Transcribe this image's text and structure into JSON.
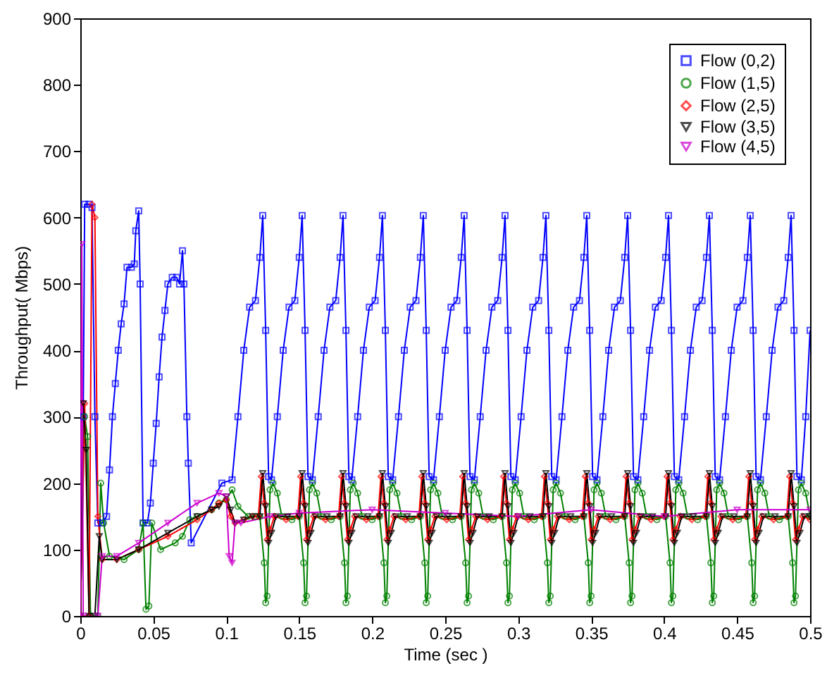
{
  "chart_data": {
    "type": "line",
    "xlabel": "Time (sec )",
    "ylabel": "Throughput( Mbps)",
    "xlim": [
      0,
      0.5
    ],
    "ylim": [
      0,
      900
    ],
    "xticks": [
      0,
      0.05,
      0.1,
      0.15,
      0.2,
      0.25,
      0.3,
      0.35,
      0.4,
      0.45,
      0.5
    ],
    "yticks": [
      0,
      100,
      200,
      300,
      400,
      500,
      600,
      700,
      800,
      900
    ],
    "legend": "top right",
    "series": [
      {
        "name": "Flow (0,2)",
        "color": "#0000ff",
        "marker": "square",
        "x": [
          0.002,
          0.003,
          0.006,
          0.008,
          0.01,
          0.012,
          0.015,
          0.018,
          0.02,
          0.022,
          0.024,
          0.026,
          0.028,
          0.03,
          0.032,
          0.035,
          0.037,
          0.038,
          0.04,
          0.041,
          0.043,
          0.046,
          0.048,
          0.05,
          0.052,
          0.054,
          0.056,
          0.058,
          0.06,
          0.063,
          0.066,
          0.068,
          0.07,
          0.071,
          0.073,
          0.074,
          0.076,
          0.097,
          0.104,
          0.108,
          0.112,
          0.116,
          0.12,
          0.123,
          0.125,
          0.127,
          0.129,
          0.131,
          0.135,
          0.139,
          0.143,
          0.147,
          0.15,
          0.152,
          0.154,
          0.156,
          0.159,
          0.163,
          0.167,
          0.171,
          0.175,
          0.178,
          0.18,
          0.182,
          0.184,
          0.186,
          0.19,
          0.194,
          0.198,
          0.202,
          0.205,
          0.207,
          0.209,
          0.211,
          0.214,
          0.218,
          0.222,
          0.226,
          0.23,
          0.233,
          0.235,
          0.237,
          0.239,
          0.242,
          0.246,
          0.25,
          0.254,
          0.258,
          0.261,
          0.263,
          0.265,
          0.267,
          0.27,
          0.274,
          0.278,
          0.282,
          0.286,
          0.289,
          0.291,
          0.293,
          0.295,
          0.298,
          0.302,
          0.306,
          0.31,
          0.314,
          0.317,
          0.319,
          0.321,
          0.323,
          0.326,
          0.33,
          0.334,
          0.338,
          0.342,
          0.345,
          0.347,
          0.349,
          0.351,
          0.354,
          0.358,
          0.362,
          0.366,
          0.37,
          0.373,
          0.375,
          0.377,
          0.379,
          0.382,
          0.386,
          0.39,
          0.394,
          0.398,
          0.401,
          0.403,
          0.405,
          0.407,
          0.41,
          0.414,
          0.418,
          0.422,
          0.426,
          0.429,
          0.431,
          0.433,
          0.435,
          0.438,
          0.442,
          0.446,
          0.45,
          0.454,
          0.457,
          0.459,
          0.461,
          0.463,
          0.466,
          0.47,
          0.474,
          0.478,
          0.482,
          0.485,
          0.487,
          0.489,
          0.491,
          0.494,
          0.497,
          0.5
        ],
        "values": [
          300,
          620,
          620,
          615,
          300,
          140,
          140,
          150,
          220,
          300,
          350,
          400,
          440,
          470,
          525,
          525,
          530,
          580,
          610,
          500,
          140,
          140,
          170,
          230,
          290,
          360,
          420,
          460,
          500,
          510,
          510,
          500,
          550,
          500,
          300,
          230,
          110,
          200,
          205,
          300,
          400,
          465,
          475,
          540,
          603,
          430,
          210,
          205,
          300,
          400,
          465,
          475,
          540,
          603,
          430,
          210,
          205,
          300,
          400,
          465,
          475,
          540,
          603,
          430,
          210,
          205,
          300,
          400,
          465,
          475,
          540,
          603,
          430,
          210,
          205,
          300,
          400,
          465,
          475,
          540,
          603,
          430,
          210,
          205,
          300,
          400,
          465,
          475,
          540,
          603,
          430,
          210,
          205,
          300,
          400,
          465,
          475,
          540,
          603,
          430,
          210,
          205,
          300,
          400,
          465,
          475,
          540,
          603,
          430,
          210,
          205,
          300,
          400,
          465,
          475,
          540,
          603,
          430,
          210,
          205,
          300,
          400,
          465,
          475,
          540,
          603,
          430,
          210,
          205,
          300,
          400,
          465,
          475,
          540,
          603,
          430,
          210,
          205,
          300,
          400,
          465,
          475,
          540,
          603,
          430,
          210,
          205,
          300,
          400,
          465,
          475,
          540,
          603,
          430,
          210,
          205,
          300,
          400,
          465,
          475,
          540,
          603,
          430,
          210,
          205,
          300,
          430
        ]
      },
      {
        "name": "Flow (1,5)",
        "color": "#008000",
        "marker": "circle",
        "x": [
          0,
          0.003,
          0.005,
          0.007,
          0.012,
          0.014,
          0.016,
          0.02,
          0.03,
          0.04,
          0.043,
          0.045,
          0.047,
          0.049,
          0.055,
          0.065,
          0.07,
          0.075,
          0.08,
          0.09,
          0.095,
          0.1,
          0.104,
          0.108,
          0.115,
          0.12,
          0.123,
          0.126,
          0.127,
          0.128,
          0.13,
          0.132,
          0.135,
          0.138,
          0.145,
          0.15,
          0.153,
          0.154,
          0.155,
          0.157,
          0.159,
          0.162,
          0.165,
          0.172,
          0.178,
          0.181,
          0.182,
          0.183,
          0.185,
          0.187,
          0.19,
          0.193,
          0.2,
          0.205,
          0.208,
          0.209,
          0.21,
          0.212,
          0.214,
          0.217,
          0.22,
          0.227,
          0.233,
          0.236,
          0.237,
          0.238,
          0.24,
          0.242,
          0.245,
          0.248,
          0.255,
          0.261,
          0.264,
          0.265,
          0.266,
          0.268,
          0.27,
          0.273,
          0.276,
          0.283,
          0.289,
          0.292,
          0.293,
          0.294,
          0.296,
          0.298,
          0.301,
          0.304,
          0.311,
          0.317,
          0.32,
          0.321,
          0.322,
          0.324,
          0.326,
          0.329,
          0.332,
          0.339,
          0.345,
          0.348,
          0.349,
          0.35,
          0.352,
          0.354,
          0.357,
          0.36,
          0.367,
          0.373,
          0.376,
          0.377,
          0.378,
          0.38,
          0.382,
          0.385,
          0.388,
          0.395,
          0.401,
          0.404,
          0.405,
          0.406,
          0.408,
          0.41,
          0.413,
          0.416,
          0.423,
          0.429,
          0.432,
          0.433,
          0.434,
          0.436,
          0.438,
          0.441,
          0.444,
          0.451,
          0.457,
          0.46,
          0.461,
          0.462,
          0.464,
          0.466,
          0.469,
          0.472,
          0.479,
          0.485,
          0.488,
          0.489,
          0.49,
          0.492,
          0.494,
          0.497,
          0.5
        ],
        "values": [
          0,
          300,
          270,
          0,
          0,
          200,
          140,
          90,
          85,
          100,
          140,
          10,
          15,
          140,
          100,
          110,
          120,
          145,
          150,
          160,
          170,
          175,
          190,
          165,
          150,
          150,
          150,
          80,
          20,
          30,
          190,
          200,
          185,
          150,
          145,
          150,
          80,
          20,
          30,
          190,
          200,
          185,
          150,
          145,
          150,
          80,
          20,
          30,
          190,
          200,
          185,
          150,
          145,
          150,
          80,
          20,
          30,
          190,
          200,
          185,
          150,
          145,
          150,
          80,
          20,
          30,
          190,
          200,
          185,
          150,
          145,
          150,
          80,
          20,
          30,
          190,
          200,
          185,
          150,
          145,
          150,
          80,
          20,
          30,
          190,
          200,
          185,
          150,
          145,
          150,
          80,
          20,
          30,
          190,
          200,
          185,
          150,
          145,
          150,
          80,
          20,
          30,
          190,
          200,
          185,
          150,
          145,
          150,
          80,
          20,
          30,
          190,
          200,
          185,
          150,
          145,
          150,
          80,
          20,
          30,
          190,
          200,
          185,
          150,
          145,
          150,
          80,
          20,
          30,
          190,
          200,
          185,
          150,
          145,
          150,
          80,
          20,
          30,
          190,
          200,
          185,
          150,
          145,
          150,
          80,
          20,
          30,
          190,
          200,
          185,
          150
        ]
      },
      {
        "name": "Flow (2,5)",
        "color": "#ff0000",
        "marker": "diamond",
        "x": [
          0,
          0.003,
          0.006,
          0.008,
          0.01,
          0.012,
          0.015,
          0.025,
          0.04,
          0.06,
          0.08,
          0.09,
          0.095,
          0.1,
          0.103,
          0.106,
          0.112,
          0.118,
          0.122,
          0.124,
          0.126,
          0.128,
          0.13,
          0.133,
          0.141,
          0.149,
          0.151,
          0.153,
          0.155,
          0.157,
          0.16,
          0.168,
          0.177,
          0.179,
          0.181,
          0.183,
          0.185,
          0.188,
          0.196,
          0.204,
          0.206,
          0.208,
          0.21,
          0.212,
          0.215,
          0.223,
          0.232,
          0.234,
          0.236,
          0.238,
          0.24,
          0.243,
          0.251,
          0.26,
          0.262,
          0.264,
          0.266,
          0.268,
          0.271,
          0.279,
          0.288,
          0.29,
          0.292,
          0.294,
          0.296,
          0.299,
          0.307,
          0.316,
          0.318,
          0.32,
          0.322,
          0.324,
          0.327,
          0.335,
          0.344,
          0.346,
          0.348,
          0.35,
          0.352,
          0.355,
          0.363,
          0.372,
          0.374,
          0.376,
          0.378,
          0.38,
          0.383,
          0.391,
          0.4,
          0.402,
          0.404,
          0.406,
          0.408,
          0.411,
          0.419,
          0.428,
          0.43,
          0.432,
          0.434,
          0.436,
          0.439,
          0.447,
          0.456,
          0.458,
          0.46,
          0.462,
          0.464,
          0.467,
          0.475,
          0.484,
          0.486,
          0.488,
          0.49,
          0.492,
          0.495,
          0.5
        ],
        "values": [
          0,
          320,
          0,
          620,
          600,
          150,
          85,
          85,
          100,
          120,
          145,
          160,
          170,
          175,
          150,
          140,
          145,
          150,
          150,
          210,
          170,
          115,
          130,
          150,
          145,
          150,
          210,
          170,
          115,
          130,
          150,
          145,
          150,
          210,
          170,
          115,
          130,
          150,
          145,
          150,
          210,
          170,
          115,
          130,
          150,
          145,
          150,
          210,
          170,
          115,
          130,
          150,
          145,
          150,
          210,
          170,
          115,
          130,
          150,
          145,
          150,
          210,
          170,
          115,
          130,
          150,
          145,
          150,
          210,
          170,
          115,
          130,
          150,
          145,
          150,
          210,
          170,
          115,
          130,
          150,
          145,
          150,
          210,
          170,
          115,
          130,
          150,
          145,
          150,
          210,
          170,
          115,
          130,
          150,
          145,
          150,
          210,
          170,
          115,
          130,
          150,
          145,
          150,
          210,
          170,
          115,
          130,
          150,
          145,
          150,
          210,
          170,
          115,
          130,
          150,
          145
        ]
      },
      {
        "name": "Flow (3,5)",
        "color": "#000000",
        "marker": "triangle",
        "x": [
          0,
          0.002,
          0.004,
          0.006,
          0.01,
          0.013,
          0.015,
          0.025,
          0.04,
          0.06,
          0.08,
          0.09,
          0.095,
          0.1,
          0.103,
          0.106,
          0.112,
          0.118,
          0.123,
          0.125,
          0.127,
          0.129,
          0.131,
          0.134,
          0.142,
          0.15,
          0.152,
          0.154,
          0.156,
          0.158,
          0.161,
          0.169,
          0.178,
          0.18,
          0.182,
          0.184,
          0.186,
          0.189,
          0.197,
          0.205,
          0.207,
          0.209,
          0.211,
          0.213,
          0.216,
          0.224,
          0.233,
          0.235,
          0.237,
          0.239,
          0.241,
          0.244,
          0.252,
          0.261,
          0.263,
          0.265,
          0.267,
          0.269,
          0.272,
          0.28,
          0.289,
          0.291,
          0.293,
          0.295,
          0.297,
          0.3,
          0.308,
          0.317,
          0.319,
          0.321,
          0.323,
          0.325,
          0.328,
          0.336,
          0.345,
          0.347,
          0.349,
          0.351,
          0.353,
          0.356,
          0.364,
          0.373,
          0.375,
          0.377,
          0.379,
          0.381,
          0.384,
          0.392,
          0.401,
          0.403,
          0.405,
          0.407,
          0.409,
          0.412,
          0.42,
          0.429,
          0.431,
          0.433,
          0.435,
          0.437,
          0.44,
          0.448,
          0.457,
          0.459,
          0.461,
          0.463,
          0.465,
          0.468,
          0.476,
          0.485,
          0.487,
          0.489,
          0.491,
          0.493,
          0.496,
          0.5
        ],
        "values": [
          0,
          320,
          250,
          0,
          0,
          120,
          85,
          85,
          100,
          125,
          150,
          160,
          165,
          180,
          160,
          140,
          145,
          150,
          150,
          215,
          165,
          110,
          125,
          150,
          150,
          150,
          215,
          165,
          110,
          125,
          150,
          150,
          150,
          215,
          165,
          110,
          125,
          150,
          150,
          150,
          215,
          165,
          110,
          125,
          150,
          150,
          150,
          215,
          165,
          110,
          125,
          150,
          150,
          150,
          215,
          165,
          110,
          125,
          150,
          150,
          150,
          215,
          165,
          110,
          125,
          150,
          150,
          150,
          215,
          165,
          110,
          125,
          150,
          150,
          150,
          215,
          165,
          110,
          125,
          150,
          150,
          150,
          215,
          165,
          110,
          125,
          150,
          150,
          150,
          215,
          165,
          110,
          125,
          150,
          150,
          150,
          215,
          165,
          110,
          125,
          150,
          150,
          150,
          215,
          165,
          110,
          125,
          150,
          150,
          150,
          215,
          165,
          110,
          125,
          150,
          150
        ]
      },
      {
        "name": "Flow (4,5)",
        "color": "#cc00cc",
        "marker": "triangle",
        "x": [
          0,
          0.001,
          0.002,
          0.012,
          0.015,
          0.025,
          0.04,
          0.06,
          0.08,
          0.095,
          0.1,
          0.102,
          0.104,
          0.106,
          0.11,
          0.13,
          0.15,
          0.2,
          0.25,
          0.3,
          0.35,
          0.4,
          0.45,
          0.5
        ],
        "values": [
          0,
          560,
          0,
          0,
          90,
          90,
          110,
          140,
          170,
          185,
          180,
          90,
          80,
          140,
          140,
          150,
          155,
          160,
          155,
          150,
          160,
          150,
          160,
          160
        ]
      }
    ]
  }
}
